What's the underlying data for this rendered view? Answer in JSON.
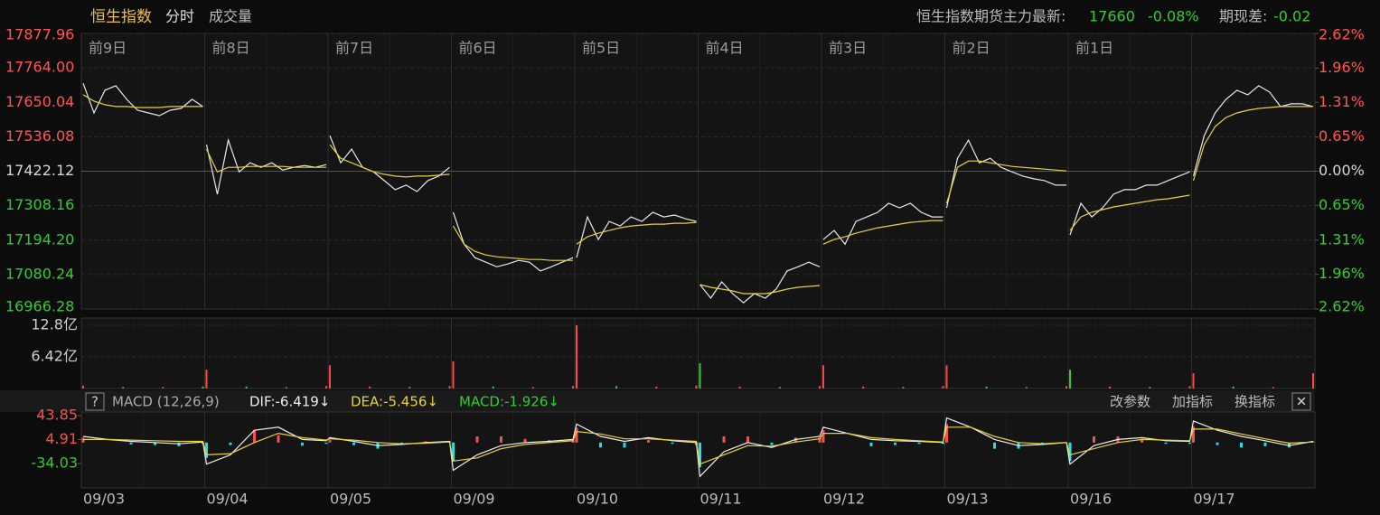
{
  "header": {
    "title": "恒生指数",
    "tab_time": "分时",
    "tab_volume": "成交量",
    "futures_label": "恒生指数期货主力最新:",
    "futures_price": 17660,
    "futures_change": "-0.08%",
    "basis_label": "期现差:",
    "basis_value": -0.02
  },
  "indicator_bar": {
    "help": "?",
    "name": "MACD (12,26,9)",
    "dif": "DIF:-6.419↓",
    "dea": "DEA:-5.456↓",
    "macd": "MACD:-1.926↓",
    "buttons": [
      "改参数",
      "加指标",
      "换指标"
    ],
    "close": "✕"
  },
  "chart_data": [
    {
      "type": "line",
      "categories": [
        "09/03",
        "09/04",
        "09/05",
        "09/09",
        "09/10",
        "09/11",
        "09/12",
        "09/13",
        "09/16",
        "09/17"
      ],
      "day_labels": [
        "前9日",
        "前8日",
        "前7日",
        "前6日",
        "前5日",
        "前4日",
        "前3日",
        "前2日",
        "前1日"
      ],
      "ylim": [
        16966.28,
        17877.96
      ],
      "yticks": [
        17877.96,
        {
          "value": 17764.0,
          "label": "17764.00"
        },
        17650.04,
        17536.08,
        17422.12,
        17308.16,
        {
          "value": 17194.2,
          "label": "17194.20"
        },
        17080.24,
        16966.28
      ],
      "y2lim": [
        -2.62,
        2.62
      ],
      "y2ticks": [
        {
          "value": 2.62,
          "label": "2.62%"
        },
        {
          "value": 1.96,
          "label": "1.96%"
        },
        {
          "value": 1.31,
          "label": "1.31%"
        },
        {
          "value": 0.65,
          "label": "0.65%"
        },
        {
          "value": 0,
          "label": "0.00%"
        },
        {
          "value": -0.65,
          "label": "0.65%"
        },
        {
          "value": -1.31,
          "label": "1.31%"
        },
        {
          "value": -1.96,
          "label": "1.96%"
        },
        {
          "value": -2.62,
          "label": "2.62%"
        }
      ],
      "up_color": "#ff5555",
      "flat_color": "#d8d8d8",
      "down_color": "#33cc33",
      "grid": true,
      "series": [
        {
          "color": "#e8e8e8",
          "values": [
            [
              17713,
              17615,
              17690,
              17705,
              17660,
              17624,
              17615,
              17606,
              17624,
              17630,
              17660,
              17636
            ],
            [
              17510,
              17346,
              17525,
              17420,
              17450,
              17435,
              17450,
              17426,
              17435,
              17441,
              17435,
              17444
            ],
            [
              17540,
              17450,
              17495,
              17435,
              17420,
              17391,
              17361,
              17376,
              17355,
              17391,
              17406,
              17435
            ],
            [
              17286,
              17181,
              17136,
              17121,
              17106,
              17115,
              17127,
              17121,
              17092,
              17106,
              17121,
              17136
            ],
            [
              17136,
              17271,
              17196,
              17256,
              17241,
              17271,
              17256,
              17286,
              17271,
              17277,
              17265,
              17256
            ],
            [
              17047,
              17002,
              17056,
              17017,
              16987,
              17017,
              17002,
              17032,
              17092,
              17106,
              17121,
              17106
            ],
            [
              17196,
              17226,
              17181,
              17256,
              17271,
              17286,
              17316,
              17301,
              17316,
              17286,
              17271,
              17271
            ],
            [
              17301,
              17465,
              17525,
              17450,
              17465,
              17435,
              17420,
              17406,
              17397,
              17391,
              17376,
              17376
            ],
            [
              17211,
              17316,
              17271,
              17301,
              17346,
              17361,
              17361,
              17376,
              17376,
              17391,
              17406,
              17420
            ],
            [
              17406,
              17540,
              17615,
              17660,
              17690,
              17675,
              17705,
              17684,
              17636,
              17645,
              17645,
              17636
            ]
          ]
        },
        {
          "color": "#e6d33a",
          "values": [
            [
              17675,
              17654,
              17642,
              17636,
              17636,
              17633,
              17633,
              17633,
              17636,
              17636,
              17636,
              17636
            ],
            [
              17495,
              17420,
              17435,
              17435,
              17438,
              17438,
              17438,
              17438,
              17435,
              17435,
              17435,
              17435
            ],
            [
              17510,
              17465,
              17450,
              17435,
              17420,
              17412,
              17406,
              17403,
              17406,
              17406,
              17409,
              17412
            ],
            [
              17241,
              17181,
              17157,
              17145,
              17139,
              17136,
              17133,
              17130,
              17130,
              17127,
              17127,
              17127
            ],
            [
              17181,
              17205,
              17217,
              17226,
              17235,
              17241,
              17244,
              17247,
              17247,
              17250,
              17250,
              17253
            ],
            [
              17047,
              17038,
              17032,
              17026,
              17017,
              17017,
              17017,
              17023,
              17032,
              17038,
              17041,
              17044
            ],
            [
              17181,
              17196,
              17205,
              17217,
              17226,
              17235,
              17241,
              17247,
              17253,
              17256,
              17259,
              17259
            ],
            [
              17316,
              17435,
              17456,
              17456,
              17450,
              17444,
              17438,
              17435,
              17432,
              17429,
              17426,
              17423
            ],
            [
              17226,
              17271,
              17286,
              17295,
              17304,
              17310,
              17316,
              17322,
              17328,
              17331,
              17337,
              17343
            ],
            [
              17391,
              17510,
              17570,
              17600,
              17615,
              17624,
              17630,
              17633,
              17636,
              17636,
              17636,
              17636
            ]
          ]
        }
      ]
    },
    {
      "type": "bar",
      "ylim": [
        0,
        12.8
      ],
      "yticks": [
        {
          "value": 12.8,
          "label": "12.8亿"
        },
        {
          "value": 6.42,
          "label": "6.42亿"
        }
      ],
      "values": [
        [
          0.6,
          0.3,
          0.3,
          0.4
        ],
        [
          3.8,
          0.4,
          0.3,
          0.5
        ],
        [
          4.7,
          0.4,
          0.3,
          0.5
        ],
        [
          5.5,
          0.4,
          0.3,
          0.5
        ],
        [
          12.8,
          0.5,
          0.4,
          0.6
        ],
        [
          5.1,
          0.4,
          0.3,
          0.5
        ],
        [
          4.7,
          0.4,
          0.3,
          0.5
        ],
        [
          4.7,
          0.4,
          0.3,
          0.5
        ],
        [
          3.8,
          0.4,
          0.3,
          0.5
        ],
        [
          3.1,
          0.4,
          0.3,
          3.1
        ]
      ],
      "colors": [
        [
          "#ff4444",
          "#33cc33",
          "#ff4444",
          "#33cc33"
        ],
        [
          "#ff4444",
          "#33cc33",
          "#ff4444",
          "#ff4444"
        ],
        [
          "#ff4444",
          "#ff4444",
          "#33cc33",
          "#ff4444"
        ],
        [
          "#ff4444",
          "#33cc33",
          "#ff4444",
          "#ff4444"
        ],
        [
          "#ff4444",
          "#33cc33",
          "#ff4444",
          "#ff4444"
        ],
        [
          "#33cc33",
          "#ff4444",
          "#33cc33",
          "#ff4444"
        ],
        [
          "#ff4444",
          "#ff4444",
          "#33cc33",
          "#ff4444"
        ],
        [
          "#ff4444",
          "#33cc33",
          "#ff4444",
          "#ff4444"
        ],
        [
          "#33cc33",
          "#ff4444",
          "#33cc33",
          "#ff4444"
        ],
        [
          "#ff4444",
          "#33cc33",
          "#ff4444",
          "#ff4444"
        ]
      ]
    },
    {
      "type": "macd",
      "ylim": [
        -73.7,
        49.7
      ],
      "yticks": [
        43.85,
        4.91,
        -34.03
      ],
      "up_color": "#ff4d4d",
      "down_color": "#1fe0e8",
      "series": [
        {
          "color": "#eeeeee",
          "values": [
            [
              10,
              5,
              2,
              0,
              -2,
              1
            ],
            [
              -35,
              -20,
              20,
              25,
              5,
              3
            ],
            [
              8,
              2,
              -5,
              -3,
              0,
              2
            ],
            [
              -45,
              -20,
              -5,
              0,
              2,
              5
            ],
            [
              30,
              10,
              2,
              8,
              3,
              0
            ],
            [
              -55,
              -15,
              0,
              -8,
              5,
              10
            ],
            [
              25,
              15,
              5,
              3,
              2,
              0
            ],
            [
              40,
              25,
              5,
              -5,
              -3,
              0
            ],
            [
              -35,
              -5,
              5,
              8,
              3,
              2
            ],
            [
              35,
              20,
              10,
              3,
              -5,
              2
            ]
          ]
        },
        {
          "color": "#e6d33a",
          "values": [
            [
              5,
              5,
              4,
              3,
              2,
              2
            ],
            [
              -20,
              -18,
              0,
              15,
              8,
              4
            ],
            [
              6,
              4,
              0,
              -2,
              -1,
              1
            ],
            [
              -30,
              -25,
              -10,
              -3,
              0,
              3
            ],
            [
              18,
              14,
              6,
              6,
              4,
              2
            ],
            [
              -35,
              -20,
              -5,
              -6,
              1,
              6
            ],
            [
              15,
              15,
              8,
              5,
              3,
              1
            ],
            [
              25,
              25,
              10,
              0,
              -2,
              0
            ],
            [
              -20,
              -10,
              0,
              5,
              4,
              3
            ],
            [
              22,
              22,
              14,
              6,
              -1,
              1
            ]
          ]
        }
      ],
      "histogram": [
        [
          8,
          0,
          -3,
          -4,
          -6,
          -2
        ],
        [
          -25,
          -4,
          20,
          12,
          -5,
          -2
        ],
        [
          4,
          -4,
          -10,
          -2,
          2,
          2
        ],
        [
          -30,
          10,
          10,
          6,
          4,
          4
        ],
        [
          24,
          -8,
          -8,
          4,
          -2,
          -4
        ],
        [
          -40,
          10,
          10,
          -4,
          8,
          8
        ],
        [
          20,
          0,
          -6,
          -4,
          -2,
          -2
        ],
        [
          30,
          0,
          -10,
          -10,
          -2,
          0
        ],
        [
          -30,
          10,
          10,
          6,
          -2,
          -2
        ],
        [
          26,
          -4,
          -8,
          -6,
          -8,
          2
        ]
      ]
    }
  ]
}
